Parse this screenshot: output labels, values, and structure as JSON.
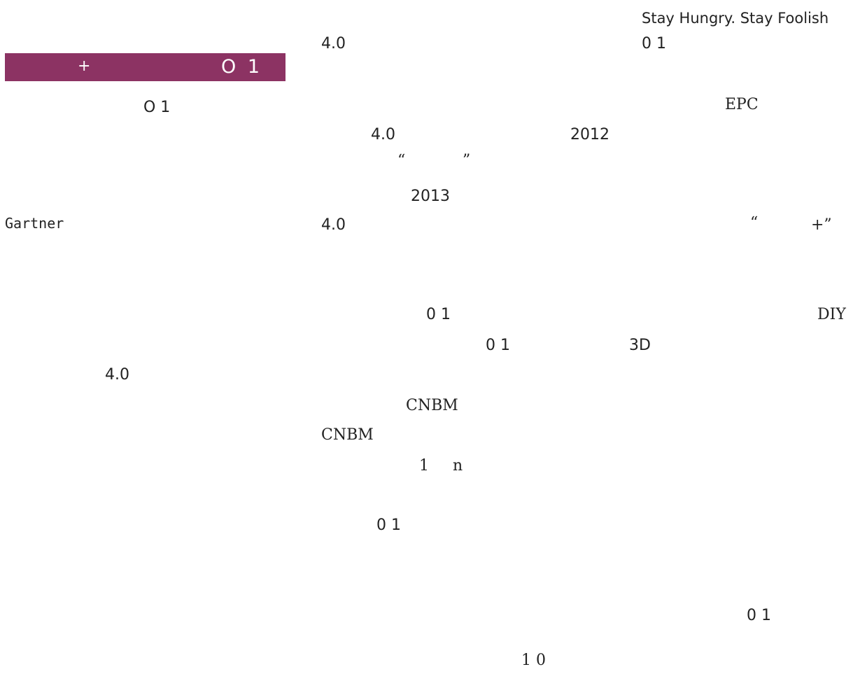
{
  "sidebar": {
    "banner_plus": "+",
    "banner_num": "O 1",
    "frag_o1": "O 1",
    "frag_gartner": "Gartner",
    "frag_40": "4.0"
  },
  "main": {
    "f01": "Stay Hungry. Stay Foolish",
    "f02": "4.0",
    "f03": "0 1",
    "f04": "EPC",
    "f05": "4.0",
    "f06": "2012",
    "f07": "“",
    "f08": "”",
    "f09": "2013",
    "f10": "4.0",
    "f11": "“",
    "f12": "+”",
    "f13": "0 1",
    "f14": "DIY",
    "f15": "0 1",
    "f16": "3D",
    "f17": "CNBM",
    "f18": "CNBM",
    "f19": "1",
    "f20": "n",
    "f21": "0 1",
    "f22": "0 1",
    "f23": "1 0"
  }
}
